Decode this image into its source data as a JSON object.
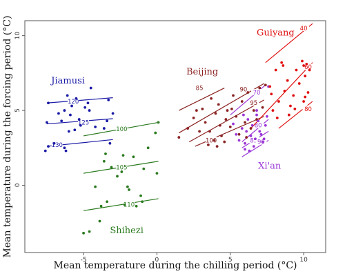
{
  "chart_data": {
    "type": "scatter",
    "title": "",
    "xlabel": "Mean temperature during the chilling period (°C)",
    "ylabel": "Mean temperature during the forcing period (°C)",
    "xlim": [
      -9,
      11.5
    ],
    "ylim": [
      -4.5,
      11
    ],
    "xticks": [
      -5,
      0,
      5,
      10
    ],
    "yticks": [
      0,
      5,
      10
    ],
    "x_tick_labels": [
      "-5",
      "0",
      "5",
      "10"
    ],
    "y_tick_labels": [
      "0",
      "5",
      "10"
    ],
    "grid": false,
    "series": [
      {
        "name": "Jiamusi",
        "color": "#1a1aa6",
        "label_at": [
          -7.2,
          6.8
        ],
        "points": [
          [
            -7.6,
            2.3
          ],
          [
            -7.4,
            2.6
          ],
          [
            -7.0,
            2.8
          ],
          [
            -6.3,
            2.5
          ],
          [
            -6.2,
            2.3
          ],
          [
            -6.0,
            3.6
          ],
          [
            -5.6,
            3.7
          ],
          [
            -5.2,
            4.0
          ],
          [
            -4.9,
            5.2
          ],
          [
            -4.7,
            5.5
          ],
          [
            -4.6,
            5.0
          ],
          [
            -4.5,
            6.5
          ],
          [
            -4.2,
            3.9
          ],
          [
            -3.6,
            3.8
          ],
          [
            -3.4,
            4.3
          ],
          [
            -3.3,
            5.7
          ],
          [
            -3.2,
            2.8
          ],
          [
            -3.0,
            4.8
          ],
          [
            -7.5,
            4.2
          ],
          [
            -7.4,
            5.5
          ],
          [
            -6.7,
            4.8
          ],
          [
            -6.5,
            4.3
          ],
          [
            -6.3,
            5.0
          ],
          [
            -6.1,
            6.0
          ],
          [
            -5.9,
            4.7
          ],
          [
            -5.8,
            5.3
          ],
          [
            -5.5,
            5.8
          ],
          [
            -5.3,
            4.4
          ]
        ],
        "contours": [
          {
            "label": "120",
            "x1": -7.5,
            "y1": 5.5,
            "x2": -3.0,
            "y2": 5.85,
            "lx": -5.7,
            "ly": 5.6
          },
          {
            "label": "125",
            "x1": -7.5,
            "y1": 4.1,
            "x2": -3.0,
            "y2": 4.45,
            "lx": -5.0,
            "ly": 4.2
          },
          {
            "label": "130",
            "x1": -7.5,
            "y1": 2.6,
            "x2": -3.0,
            "y2": 3.05,
            "lx": -6.8,
            "ly": 2.7
          }
        ]
      },
      {
        "name": "Shihezi",
        "color": "#2a7a1e",
        "label_at": [
          -3.2,
          -3.2
        ],
        "points": [
          [
            -5.0,
            -3.2
          ],
          [
            -4.6,
            -3.1
          ],
          [
            -3.9,
            -2.4
          ],
          [
            -3.8,
            -1.4
          ],
          [
            -3.4,
            -1.1
          ],
          [
            -3.6,
            1.6
          ],
          [
            -3.5,
            2.1
          ],
          [
            -3.1,
            1.2
          ],
          [
            -2.7,
            0.6
          ],
          [
            -2.4,
            0.9
          ],
          [
            -2.2,
            -1.3
          ],
          [
            -2.3,
            2.0
          ],
          [
            -1.9,
            -0.3
          ],
          [
            -1.6,
            1.9
          ],
          [
            -1.4,
            -1.4
          ],
          [
            -1.1,
            -0.7
          ],
          [
            -0.9,
            1.1
          ],
          [
            -0.6,
            2.5
          ],
          [
            -0.1,
            3.5
          ],
          [
            0.1,
            4.2
          ],
          [
            -2.0,
            -0.1
          ],
          [
            -4.2,
            -0.1
          ],
          [
            -1.0,
            -1.1
          ],
          [
            0.0,
            0.8
          ]
        ],
        "contours": [
          {
            "label": "100",
            "x1": -5.0,
            "y1": 3.3,
            "x2": 0.1,
            "y2": 4.2,
            "lx": -2.4,
            "ly": 3.75
          },
          {
            "label": "105",
            "x1": -5.0,
            "y1": 0.8,
            "x2": 0.1,
            "y2": 1.6,
            "lx": -2.4,
            "ly": 1.2
          },
          {
            "label": "110",
            "x1": -5.0,
            "y1": -1.7,
            "x2": 0.1,
            "y2": -0.9,
            "lx": -1.9,
            "ly": -1.3
          }
        ]
      },
      {
        "name": "Beijing",
        "color": "#8b2323",
        "label_at": [
          2.0,
          7.4
        ],
        "points": [
          [
            1.5,
            3.2
          ],
          [
            2.1,
            3.8
          ],
          [
            2.5,
            4.5
          ],
          [
            2.9,
            3.6
          ],
          [
            3.1,
            5.1
          ],
          [
            3.3,
            4.2
          ],
          [
            3.5,
            2.7
          ],
          [
            3.7,
            5.8
          ],
          [
            3.9,
            3.0
          ],
          [
            4.0,
            4.8
          ],
          [
            4.2,
            5.4
          ],
          [
            4.4,
            3.3
          ],
          [
            4.6,
            2.9
          ],
          [
            4.8,
            5.0
          ],
          [
            5.0,
            3.9
          ],
          [
            5.2,
            6.0
          ],
          [
            5.4,
            4.6
          ],
          [
            5.6,
            3.4
          ],
          [
            5.8,
            5.6
          ],
          [
            6.0,
            4.2
          ],
          [
            6.2,
            6.2
          ],
          [
            6.4,
            3.8
          ],
          [
            6.6,
            5.0
          ],
          [
            6.8,
            4.4
          ],
          [
            7.0,
            6.5
          ],
          [
            7.2,
            5.2
          ],
          [
            7.4,
            6.7
          ],
          [
            3.6,
            3.6
          ],
          [
            4.1,
            2.6
          ],
          [
            4.3,
            4.0
          ],
          [
            5.1,
            5.1
          ],
          [
            6.1,
            3.2
          ],
          [
            2.7,
            5.0
          ],
          [
            4.7,
            4.4
          ]
        ],
        "contours": [
          {
            "label": "85",
            "x1": 1.5,
            "y1": 5.0,
            "x2": 4.6,
            "y2": 6.5,
            "lx": 2.9,
            "ly": 6.5
          },
          {
            "label": "90",
            "x1": 1.5,
            "y1": 3.5,
            "x2": 7.3,
            "y2": 6.8,
            "lx": 5.9,
            "ly": 6.4
          },
          {
            "label": "95",
            "x1": 2.2,
            "y1": 2.9,
            "x2": 7.3,
            "y2": 5.7,
            "lx": 6.6,
            "ly": 5.5
          },
          {
            "label": "100",
            "x1": 2.6,
            "y1": 2.6,
            "x2": 7.3,
            "y2": 4.6,
            "lx": 3.7,
            "ly": 3.0
          }
        ]
      },
      {
        "name": "Xi'an",
        "color": "#9a35d6",
        "label_at": [
          6.9,
          1.1
        ],
        "points": [
          [
            5.2,
            4.1
          ],
          [
            5.4,
            3.4
          ],
          [
            5.6,
            3.0
          ],
          [
            5.8,
            3.8
          ],
          [
            6.0,
            2.8
          ],
          [
            6.2,
            4.4
          ],
          [
            6.4,
            3.3
          ],
          [
            6.6,
            2.6
          ],
          [
            6.8,
            4.7
          ],
          [
            7.0,
            3.6
          ],
          [
            7.2,
            2.9
          ],
          [
            7.4,
            4.0
          ],
          [
            6.1,
            3.6
          ],
          [
            6.3,
            2.3
          ],
          [
            6.5,
            4.0
          ],
          [
            6.7,
            3.1
          ],
          [
            6.9,
            4.3
          ],
          [
            7.1,
            3.4
          ],
          [
            5.9,
            4.7
          ],
          [
            7.3,
            3.1
          ],
          [
            7.5,
            4.6
          ],
          [
            7.6,
            6.6
          ],
          [
            6.0,
            2.4
          ],
          [
            6.8,
            5.0
          ]
        ],
        "contours": [
          {
            "label": "70",
            "x1": 5.0,
            "y1": 4.7,
            "x2": 7.4,
            "y2": 6.7,
            "lx": 6.8,
            "ly": 6.2
          },
          {
            "label": "80",
            "x1": 5.8,
            "y1": 2.9,
            "x2": 7.6,
            "y2": 4.4,
            "lx": 6.9,
            "ly": 4.0
          },
          {
            "label": "85",
            "x1": 5.8,
            "y1": 2.5,
            "x2": 7.6,
            "y2": 3.6,
            "lx": 6.6,
            "ly": 3.0
          },
          {
            "label": "90",
            "x1": 5.8,
            "y1": 1.9,
            "x2": 7.6,
            "y2": 3.0,
            "lx": 7.1,
            "ly": 2.9
          }
        ]
      },
      {
        "name": "Guiyang",
        "color": "#e01010",
        "label_at": [
          6.8,
          10.0
        ],
        "points": [
          [
            7.7,
            6.6
          ],
          [
            7.9,
            5.0
          ],
          [
            8.1,
            7.7
          ],
          [
            8.3,
            5.6
          ],
          [
            8.5,
            8.2
          ],
          [
            8.7,
            6.3
          ],
          [
            8.9,
            7.0
          ],
          [
            9.1,
            5.3
          ],
          [
            9.3,
            6.0
          ],
          [
            9.5,
            7.7
          ],
          [
            9.7,
            6.8
          ],
          [
            9.9,
            8.3
          ],
          [
            10.0,
            5.6
          ],
          [
            10.1,
            7.3
          ],
          [
            10.2,
            8.1
          ],
          [
            10.3,
            6.2
          ],
          [
            10.4,
            7.7
          ],
          [
            8.2,
            4.5
          ],
          [
            9.0,
            4.7
          ],
          [
            10.1,
            5.9
          ],
          [
            7.8,
            6.1
          ],
          [
            9.4,
            5.1
          ],
          [
            8.6,
            8.0
          ],
          [
            10.0,
            8.0
          ]
        ],
        "contours": [
          {
            "label": "40",
            "x1": 7.4,
            "y1": 8.2,
            "x2": 10.6,
            "y2": 10.8,
            "lx": 10.0,
            "ly": 10.5
          },
          {
            "label": "60",
            "x1": 6.4,
            "y1": 3.8,
            "x2": 10.6,
            "y2": 8.2,
            "lx": 10.3,
            "ly": 7.9
          },
          {
            "label": "80",
            "x1": 8.3,
            "y1": 3.8,
            "x2": 10.6,
            "y2": 5.6,
            "lx": 10.3,
            "ly": 5.1
          }
        ]
      }
    ]
  }
}
